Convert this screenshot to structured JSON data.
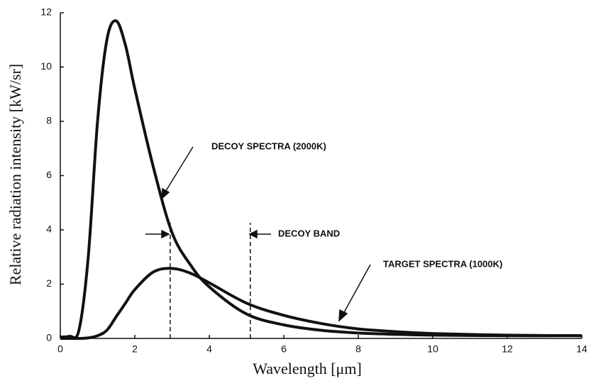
{
  "chart_data": {
    "type": "line",
    "x_label": "Wavelength [μm]",
    "y_label": "Relative radiation intensity [kW/sr]",
    "x": [
      0,
      0.25,
      0.5,
      0.75,
      1,
      1.25,
      1.5,
      1.75,
      2,
      2.5,
      3,
      3.5,
      4,
      5,
      6,
      7,
      8,
      9,
      10,
      12,
      14
    ],
    "series": [
      {
        "name": "DECOY SPECTRA (2000K)",
        "color": "#111111",
        "values": [
          0.05,
          0.08,
          0.3,
          3,
          8,
          11,
          11.7,
          10.8,
          9.2,
          6.3,
          3.9,
          2.7,
          1.9,
          0.9,
          0.5,
          0.3,
          0.2,
          0.15,
          0.12,
          0.1,
          0.1
        ]
      },
      {
        "name": "TARGET SPECTRA (1000K)",
        "color": "#111111",
        "values": [
          0,
          0,
          0,
          0.02,
          0.1,
          0.3,
          0.8,
          1.3,
          1.8,
          2.45,
          2.58,
          2.4,
          2.05,
          1.3,
          0.85,
          0.55,
          0.35,
          0.25,
          0.18,
          0.12,
          0.1
        ]
      }
    ],
    "band_label": "DECOY BAND",
    "band": [
      2.95,
      5.1
    ],
    "xlim": [
      0,
      14
    ],
    "xticks": [
      0,
      2,
      4,
      6,
      8,
      10,
      12,
      14
    ],
    "ylim": [
      0,
      12
    ],
    "yticks": [
      0,
      2,
      4,
      6,
      8,
      10,
      12
    ]
  }
}
